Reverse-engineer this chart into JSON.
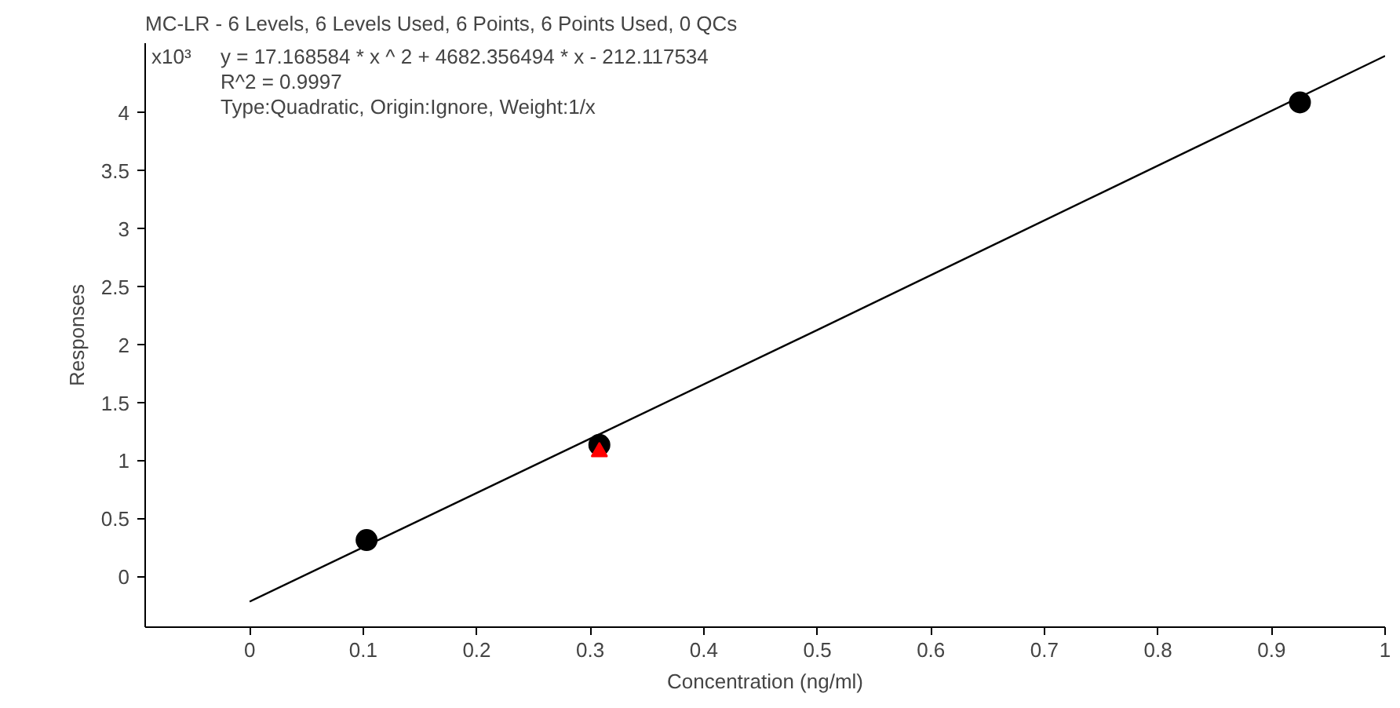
{
  "chart_data": {
    "type": "scatter",
    "title": "MC-LR - 6 Levels, 6 Levels Used, 6 Points, 6 Points Used, 0 QCs",
    "xlabel": "Concentration (ng/ml)",
    "ylabel": "Responses",
    "annotations": [
      "x10³",
      "y = 17.168584 * x ^ 2  + 4682.356494 * x  - 212.117534",
      "R^2 = 0.9997",
      "Type:Quadratic, Origin:Ignore, Weight:1/x"
    ],
    "xlim": [
      -0.092,
      1.0
    ],
    "ylim": [
      -0.43,
      4.6
    ],
    "xticks": [
      0,
      0.1,
      0.2,
      0.3,
      0.4,
      0.5,
      0.6,
      0.7,
      0.8,
      0.9,
      1
    ],
    "yticks": [
      0,
      0.5,
      1,
      1.5,
      2,
      2.5,
      3,
      3.5,
      4
    ],
    "grid": false,
    "series": [
      {
        "type": "line",
        "color": "#000000",
        "x": [
          0,
          0.25,
          0.5,
          0.75,
          1
        ],
        "values": [
          -0.21,
          0.96,
          2.13,
          3.31,
          4.49
        ]
      },
      {
        "color": "#000000",
        "x": [
          0.103,
          0.308,
          0.925
        ],
        "values": [
          0.32,
          1.14,
          4.09
        ],
        "marker": "circle"
      },
      {
        "color": "#ff0000",
        "x": [
          0.308
        ],
        "values": [
          1.08
        ],
        "marker": "triangle"
      }
    ]
  }
}
